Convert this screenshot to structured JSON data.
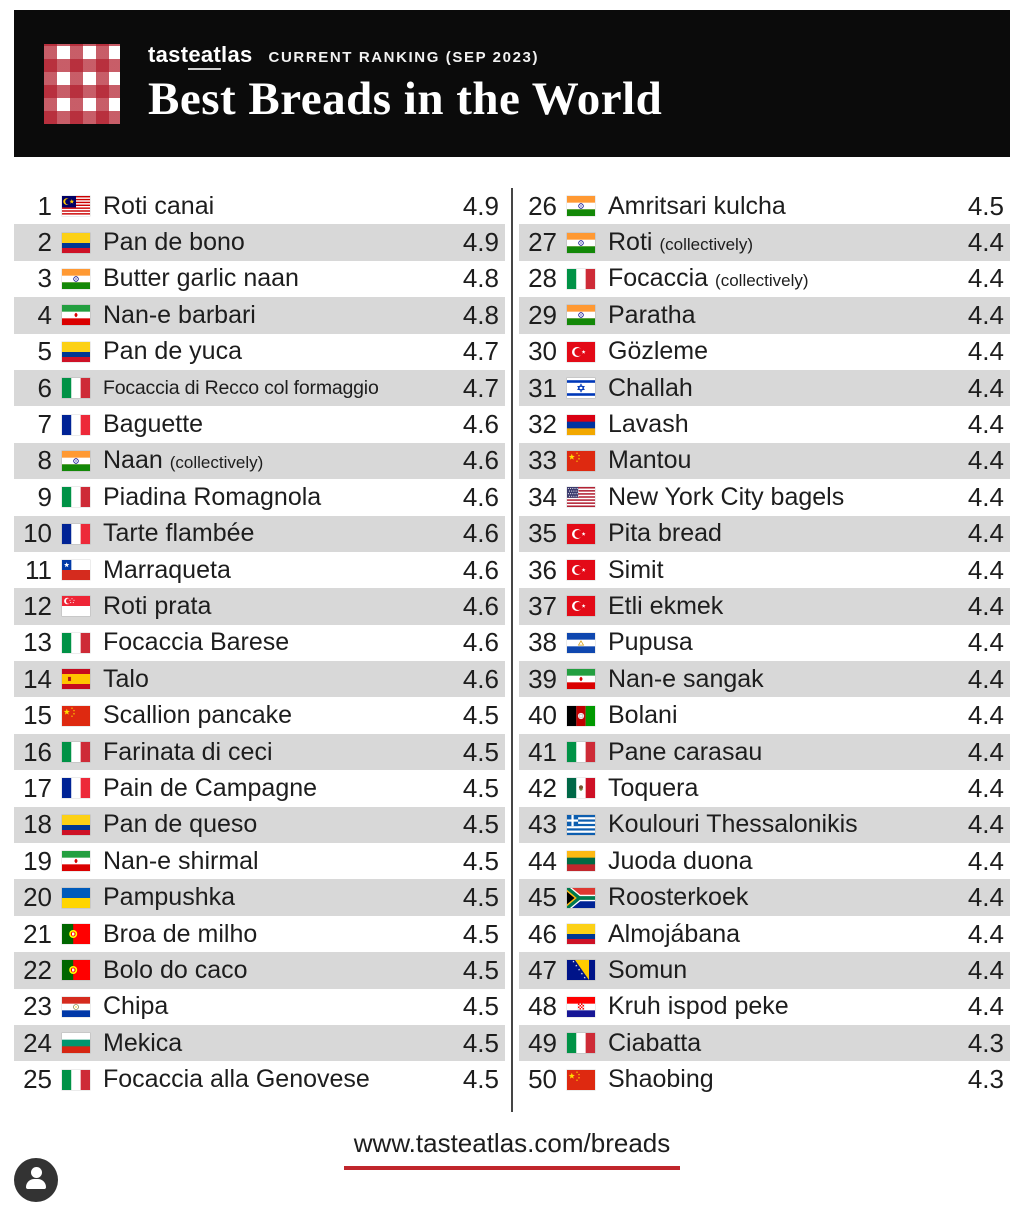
{
  "header": {
    "logo": {
      "part1": "tast",
      "part2": "eat",
      "part3": "las"
    },
    "ranking_label": "CURRENT RANKING (SEP 2023)",
    "title": "Best Breads in the World"
  },
  "footer": {
    "url": "www.tasteatlas.com/breads"
  },
  "colors": {
    "accent_red": "#c0262c",
    "row_alt": "#d8d8d8",
    "header_bg": "#0b0b0b",
    "divider": "#454545"
  },
  "icons": {
    "brand_pattern": "gingham-pattern",
    "avatar": "person-icon"
  },
  "ranking": {
    "items": [
      {
        "rank": 1,
        "name": "Roti canai",
        "note": "",
        "score": "4.9",
        "country": "Malaysia",
        "flag": "malaysia"
      },
      {
        "rank": 2,
        "name": "Pan de bono",
        "note": "",
        "score": "4.9",
        "country": "Colombia",
        "flag": "colombia"
      },
      {
        "rank": 3,
        "name": "Butter garlic naan",
        "note": "",
        "score": "4.8",
        "country": "India",
        "flag": "india"
      },
      {
        "rank": 4,
        "name": "Nan-e barbari",
        "note": "",
        "score": "4.8",
        "country": "Iran",
        "flag": "iran"
      },
      {
        "rank": 5,
        "name": "Pan de yuca",
        "note": "",
        "score": "4.7",
        "country": "Colombia",
        "flag": "colombia"
      },
      {
        "rank": 6,
        "name": "Focaccia di Recco col formaggio",
        "note": "",
        "score": "4.7",
        "country": "Italy",
        "flag": "italy"
      },
      {
        "rank": 7,
        "name": "Baguette",
        "note": "",
        "score": "4.6",
        "country": "France",
        "flag": "france"
      },
      {
        "rank": 8,
        "name": "Naan",
        "note": "(collectively)",
        "score": "4.6",
        "country": "India",
        "flag": "india"
      },
      {
        "rank": 9,
        "name": "Piadina Romagnola",
        "note": "",
        "score": "4.6",
        "country": "Italy",
        "flag": "italy"
      },
      {
        "rank": 10,
        "name": "Tarte flambée",
        "note": "",
        "score": "4.6",
        "country": "France",
        "flag": "france"
      },
      {
        "rank": 11,
        "name": "Marraqueta",
        "note": "",
        "score": "4.6",
        "country": "Chile",
        "flag": "chile"
      },
      {
        "rank": 12,
        "name": "Roti prata",
        "note": "",
        "score": "4.6",
        "country": "Singapore",
        "flag": "singapore"
      },
      {
        "rank": 13,
        "name": "Focaccia Barese",
        "note": "",
        "score": "4.6",
        "country": "Italy",
        "flag": "italy"
      },
      {
        "rank": 14,
        "name": "Talo",
        "note": "",
        "score": "4.6",
        "country": "Spain",
        "flag": "spain"
      },
      {
        "rank": 15,
        "name": "Scallion pancake",
        "note": "",
        "score": "4.5",
        "country": "China",
        "flag": "china"
      },
      {
        "rank": 16,
        "name": "Farinata di ceci",
        "note": "",
        "score": "4.5",
        "country": "Italy",
        "flag": "italy"
      },
      {
        "rank": 17,
        "name": "Pain de Campagne",
        "note": "",
        "score": "4.5",
        "country": "France",
        "flag": "france"
      },
      {
        "rank": 18,
        "name": "Pan de queso",
        "note": "",
        "score": "4.5",
        "country": "Colombia",
        "flag": "colombia"
      },
      {
        "rank": 19,
        "name": "Nan-e shirmal",
        "note": "",
        "score": "4.5",
        "country": "Iran",
        "flag": "iran"
      },
      {
        "rank": 20,
        "name": "Pampushka",
        "note": "",
        "score": "4.5",
        "country": "Ukraine",
        "flag": "ukraine"
      },
      {
        "rank": 21,
        "name": "Broa de milho",
        "note": "",
        "score": "4.5",
        "country": "Portugal",
        "flag": "portugal"
      },
      {
        "rank": 22,
        "name": "Bolo do caco",
        "note": "",
        "score": "4.5",
        "country": "Portugal",
        "flag": "portugal"
      },
      {
        "rank": 23,
        "name": "Chipa",
        "note": "",
        "score": "4.5",
        "country": "Paraguay",
        "flag": "paraguay"
      },
      {
        "rank": 24,
        "name": "Mekica",
        "note": "",
        "score": "4.5",
        "country": "Bulgaria",
        "flag": "bulgaria"
      },
      {
        "rank": 25,
        "name": "Focaccia alla Genovese",
        "note": "",
        "score": "4.5",
        "country": "Italy",
        "flag": "italy"
      },
      {
        "rank": 26,
        "name": "Amritsari kulcha",
        "note": "",
        "score": "4.5",
        "country": "India",
        "flag": "india"
      },
      {
        "rank": 27,
        "name": "Roti",
        "note": "(collectively)",
        "score": "4.4",
        "country": "India",
        "flag": "india"
      },
      {
        "rank": 28,
        "name": "Focaccia",
        "note": "(collectively)",
        "score": "4.4",
        "country": "Italy",
        "flag": "italy"
      },
      {
        "rank": 29,
        "name": "Paratha",
        "note": "",
        "score": "4.4",
        "country": "India",
        "flag": "india"
      },
      {
        "rank": 30,
        "name": "Gözleme",
        "note": "",
        "score": "4.4",
        "country": "Turkey",
        "flag": "turkey"
      },
      {
        "rank": 31,
        "name": "Challah",
        "note": "",
        "score": "4.4",
        "country": "Israel",
        "flag": "israel"
      },
      {
        "rank": 32,
        "name": "Lavash",
        "note": "",
        "score": "4.4",
        "country": "Armenia",
        "flag": "armenia"
      },
      {
        "rank": 33,
        "name": "Mantou",
        "note": "",
        "score": "4.4",
        "country": "China",
        "flag": "china"
      },
      {
        "rank": 34,
        "name": "New York City bagels",
        "note": "",
        "score": "4.4",
        "country": "United States",
        "flag": "usa"
      },
      {
        "rank": 35,
        "name": "Pita bread",
        "note": "",
        "score": "4.4",
        "country": "Turkey",
        "flag": "turkey"
      },
      {
        "rank": 36,
        "name": "Simit",
        "note": "",
        "score": "4.4",
        "country": "Turkey",
        "flag": "turkey"
      },
      {
        "rank": 37,
        "name": "Etli ekmek",
        "note": "",
        "score": "4.4",
        "country": "Turkey",
        "flag": "turkey"
      },
      {
        "rank": 38,
        "name": "Pupusa",
        "note": "",
        "score": "4.4",
        "country": "El Salvador",
        "flag": "el_salvador"
      },
      {
        "rank": 39,
        "name": "Nan-e sangak",
        "note": "",
        "score": "4.4",
        "country": "Iran",
        "flag": "iran"
      },
      {
        "rank": 40,
        "name": "Bolani",
        "note": "",
        "score": "4.4",
        "country": "Afghanistan",
        "flag": "afghanistan"
      },
      {
        "rank": 41,
        "name": "Pane carasau",
        "note": "",
        "score": "4.4",
        "country": "Italy",
        "flag": "italy"
      },
      {
        "rank": 42,
        "name": "Toquera",
        "note": "",
        "score": "4.4",
        "country": "Mexico",
        "flag": "mexico"
      },
      {
        "rank": 43,
        "name": "Koulouri Thessalonikis",
        "note": "",
        "score": "4.4",
        "country": "Greece",
        "flag": "greece"
      },
      {
        "rank": 44,
        "name": "Juoda duona",
        "note": "",
        "score": "4.4",
        "country": "Lithuania",
        "flag": "lithuania"
      },
      {
        "rank": 45,
        "name": "Roosterkoek",
        "note": "",
        "score": "4.4",
        "country": "South Africa",
        "flag": "south_africa"
      },
      {
        "rank": 46,
        "name": "Almojábana",
        "note": "",
        "score": "4.4",
        "country": "Colombia",
        "flag": "colombia"
      },
      {
        "rank": 47,
        "name": "Somun",
        "note": "",
        "score": "4.4",
        "country": "Bosnia and Herzegovina",
        "flag": "bosnia"
      },
      {
        "rank": 48,
        "name": "Kruh ispod peke",
        "note": "",
        "score": "4.4",
        "country": "Croatia",
        "flag": "croatia"
      },
      {
        "rank": 49,
        "name": "Ciabatta",
        "note": "",
        "score": "4.3",
        "country": "Italy",
        "flag": "italy"
      },
      {
        "rank": 50,
        "name": "Shaobing",
        "note": "",
        "score": "4.3",
        "country": "China",
        "flag": "china"
      }
    ]
  }
}
